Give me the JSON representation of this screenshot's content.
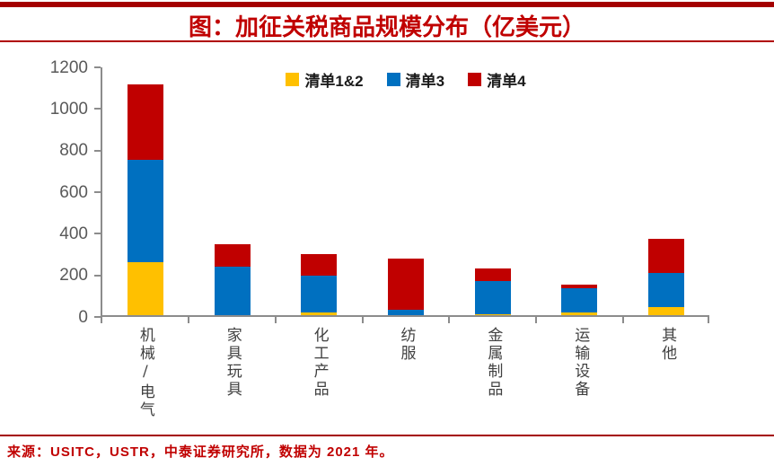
{
  "header": {
    "title": "图：加征关税商品规模分布（亿美元）"
  },
  "colors": {
    "accent_red": "#c00000",
    "band_red": "#a40000",
    "axis_gray": "#8c8c8c",
    "tick_label_gray": "#595959"
  },
  "chart_data": {
    "type": "bar",
    "stacked": true,
    "title": "图：加征关税商品规模分布（亿美元）",
    "categories": [
      "机械/电气",
      "家具玩具",
      "化工产品",
      "纺服",
      "金属制品",
      "运输设备",
      "其他"
    ],
    "series": [
      {
        "name": "清单1&2",
        "color": "#FFC000",
        "values": [
          255,
          0,
          15,
          0,
          5,
          15,
          38
        ]
      },
      {
        "name": "清单3",
        "color": "#0070C0",
        "values": [
          490,
          232,
          175,
          28,
          160,
          115,
          165
        ]
      },
      {
        "name": "清单4",
        "color": "#C00000",
        "values": [
          365,
          110,
          105,
          245,
          58,
          15,
          165
        ]
      }
    ],
    "totals": [
      1110,
      342,
      295,
      273,
      223,
      145,
      368
    ],
    "xlabel": "",
    "ylabel": "",
    "ylim": [
      0,
      1200
    ],
    "yticks": [
      0,
      200,
      400,
      600,
      800,
      1000,
      1200
    ],
    "grid": false,
    "legend_position": "top-center"
  },
  "footer": {
    "source": "来源：USITC，USTR，中泰证券研究所，数据为 2021 年。"
  }
}
